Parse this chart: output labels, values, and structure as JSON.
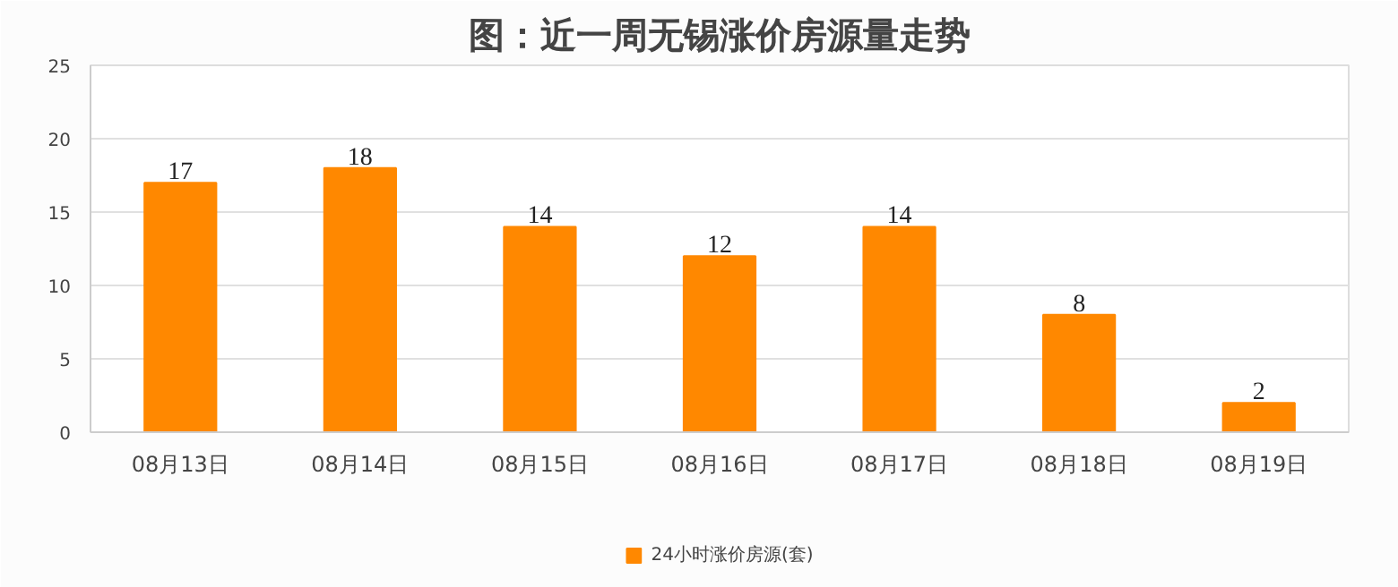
{
  "chart_data": {
    "type": "bar",
    "title": "图：近一周无锡涨价房源量走势",
    "categories": [
      "08月13日",
      "08月14日",
      "08月15日",
      "08月16日",
      "08月17日",
      "08月18日",
      "08月19日"
    ],
    "series": [
      {
        "name": "24小时涨价房源(套)",
        "color": "#ff8800",
        "values": [
          17,
          18,
          14,
          12,
          14,
          8,
          2
        ]
      }
    ],
    "ylim": [
      0,
      25
    ],
    "yticks": [
      0,
      5,
      10,
      15,
      20,
      25
    ],
    "grid": "y",
    "legend": "bottom",
    "data_labels": true
  }
}
